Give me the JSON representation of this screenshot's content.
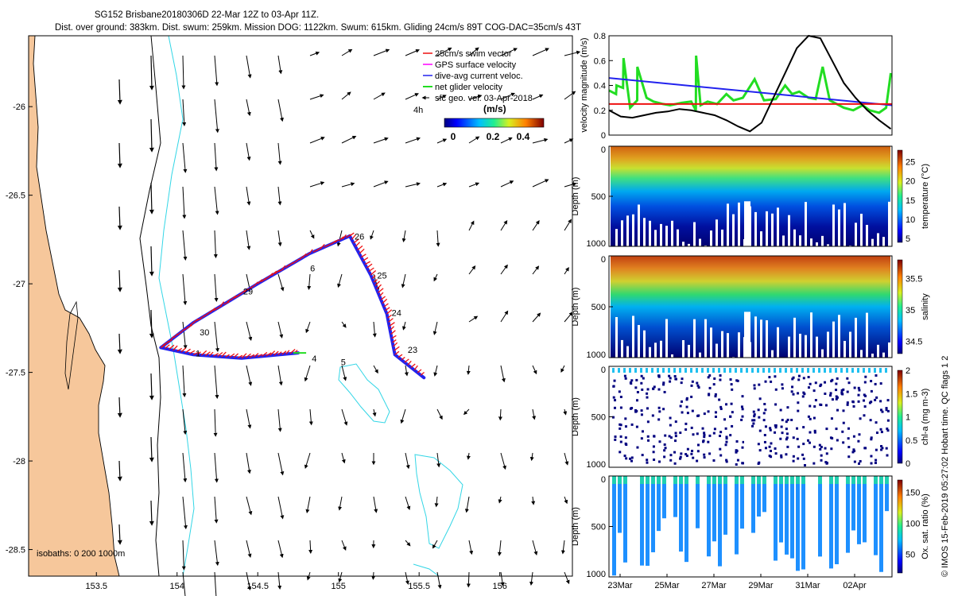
{
  "header": {
    "title_line1": "SG152 Brisbane20180306D 22-Mar 12Z to 03-Apr 11Z.",
    "title_line2": "Dist. over ground: 383km. Dist. swum: 259km. Mission DOG: 1122km. Swum: 615km. Gliding 24cm/s 89T COG-DAC=35cm/s 43T"
  },
  "colors": {
    "land": "#f6c79b",
    "isobath_cyan": "#33d6e6",
    "swim_vector": "#ee1111",
    "gps_velocity": "#ff00ff",
    "dac": "#2222ee",
    "net_glider": "#22dd22",
    "black": "#000000"
  },
  "chart_data": [
    {
      "id": "map",
      "type": "scatter",
      "title": "Glider track and surface geostrophic velocity",
      "xlabel": "",
      "ylabel": "",
      "xlim": [
        153.08,
        156.45
      ],
      "ylim": [
        -28.65,
        -25.6
      ],
      "x_ticks": [
        153.5,
        154,
        154.5,
        155,
        155.5,
        156
      ],
      "x_tick_labels": [
        "153.5",
        "154",
        "154.5",
        "155",
        "155.5",
        "156"
      ],
      "y_ticks": [
        -26,
        -26.5,
        -27,
        -27.5,
        -28,
        -28.5
      ],
      "y_tick_labels": [
        "-26",
        "-26.5",
        "-27",
        "-27.5",
        "-28",
        "-28.5"
      ],
      "legend": [
        {
          "label": "25cm/s swim vector",
          "color": "#ee1111"
        },
        {
          "label": "GPS surface velocity",
          "color": "#ff00ff"
        },
        {
          "label": "dive-avg current veloc.",
          "color": "#2222ee"
        },
        {
          "label": "net glider velocity",
          "color": "#22dd22"
        },
        {
          "label": "sfc geo. vel. 03-Apr-2018",
          "color": "#000000"
        }
      ],
      "legend_extra": "4h",
      "colorbar": {
        "label": "(m/s)",
        "ticks": [
          "0",
          "0.2",
          "0.4"
        ],
        "range": [
          0,
          0.5
        ]
      },
      "isobath_label": "isobaths: 0   200   1000m",
      "track_segment_A": [
        [
          153.9,
          -27.36
        ],
        [
          154.1,
          -27.22
        ],
        [
          154.5,
          -27.0
        ],
        [
          154.82,
          -26.83
        ],
        [
          155.07,
          -26.73
        ]
      ],
      "track_segment_B": [
        [
          155.07,
          -26.73
        ],
        [
          155.2,
          -26.95
        ],
        [
          155.3,
          -27.17
        ],
        [
          155.35,
          -27.4
        ],
        [
          155.53,
          -27.53
        ]
      ],
      "track_segment_C": [
        [
          153.9,
          -27.36
        ],
        [
          154.1,
          -27.4
        ],
        [
          154.4,
          -27.42
        ],
        [
          154.75,
          -27.39
        ]
      ],
      "day_labels": [
        {
          "text": "26",
          "lon": 155.13,
          "lat": -26.75
        },
        {
          "text": "25",
          "lon": 155.27,
          "lat": -26.97
        },
        {
          "text": "24",
          "lon": 155.36,
          "lat": -27.18
        },
        {
          "text": "23",
          "lon": 155.46,
          "lat": -27.39
        },
        {
          "text": "29",
          "lon": 154.44,
          "lat": -27.06
        },
        {
          "text": "30",
          "lon": 154.17,
          "lat": -27.29
        },
        {
          "text": "1",
          "lon": 154.13,
          "lat": -27.41
        },
        {
          "text": "4",
          "lon": 154.85,
          "lat": -27.44
        },
        {
          "text": "5",
          "lon": 155.03,
          "lat": -27.46
        },
        {
          "text": "6",
          "lon": 154.84,
          "lat": -26.93
        }
      ]
    },
    {
      "id": "velocity",
      "type": "line",
      "title": "",
      "xlabel": "",
      "ylabel": "velocity magnitude (m/s)",
      "ylim": [
        0,
        0.8
      ],
      "y_ticks": [
        "0",
        "0.2",
        "0.4",
        "0.6",
        "0.8"
      ],
      "xlim_days": [
        0,
        12.05
      ],
      "series": [
        {
          "name": "net glider velocity",
          "color": "#22dd22",
          "x": [
            0,
            0.3,
            0.32,
            0.6,
            0.62,
            0.9,
            1.2,
            1.21,
            1.6,
            1.9,
            2.3,
            2.6,
            3.1,
            3.5,
            3.7,
            3.71,
            3.9,
            4.2,
            4.6,
            5.0,
            5.3,
            5.7,
            6.2,
            6.6,
            7.1,
            7.5,
            7.8,
            8.1,
            8.5,
            8.8,
            9.1,
            9.4,
            9.7,
            10.0,
            10.4,
            10.8,
            11.1,
            11.5,
            11.8,
            12.0
          ],
          "values": [
            0.36,
            0.33,
            0.4,
            0.38,
            0.62,
            0.22,
            0.28,
            0.55,
            0.3,
            0.27,
            0.25,
            0.24,
            0.26,
            0.27,
            0.2,
            0.64,
            0.24,
            0.27,
            0.25,
            0.33,
            0.28,
            0.3,
            0.45,
            0.28,
            0.29,
            0.4,
            0.33,
            0.35,
            0.3,
            0.29,
            0.55,
            0.28,
            0.25,
            0.22,
            0.2,
            0.24,
            0.2,
            0.18,
            0.22,
            0.5
          ]
        },
        {
          "name": "dive-avg current veloc.",
          "color": "#2222ee",
          "x": [
            0,
            12.05
          ],
          "values": [
            0.46,
            0.24
          ]
        },
        {
          "name": "swim speed",
          "color": "#ee1111",
          "x": [
            0,
            12.05
          ],
          "values": [
            0.25,
            0.25
          ]
        },
        {
          "name": "sfc geo. vel.",
          "color": "#000000",
          "x": [
            0,
            0.5,
            1.0,
            1.5,
            2.0,
            2.5,
            3.0,
            3.5,
            4.0,
            4.5,
            5.0,
            5.5,
            6.0,
            6.5,
            7.0,
            7.5,
            8.0,
            8.5,
            9.0,
            9.5,
            10.0,
            10.5,
            11.0,
            11.5,
            12.0
          ],
          "values": [
            0.2,
            0.15,
            0.14,
            0.16,
            0.18,
            0.19,
            0.21,
            0.2,
            0.18,
            0.16,
            0.12,
            0.07,
            0.03,
            0.1,
            0.3,
            0.5,
            0.7,
            0.82,
            0.78,
            0.6,
            0.42,
            0.3,
            0.2,
            0.12,
            0.05
          ]
        }
      ]
    },
    {
      "id": "temperature",
      "type": "heatmap",
      "ylabel": "Depth (m)",
      "ylim": [
        1000,
        0
      ],
      "y_ticks": [
        "0",
        "500",
        "1000"
      ],
      "colorbar_label": "temperature (°C)",
      "colorbar_ticks": [
        "5",
        "10",
        "15",
        "20",
        "25"
      ],
      "color_range": [
        4,
        28
      ]
    },
    {
      "id": "salinity",
      "type": "heatmap",
      "ylabel": "Depth (m)",
      "ylim": [
        1000,
        0
      ],
      "y_ticks": [
        "0",
        "500",
        "1000"
      ],
      "colorbar_label": "salinity",
      "colorbar_ticks": [
        "34.5",
        "35",
        "35.5"
      ],
      "color_range": [
        34.3,
        35.8
      ]
    },
    {
      "id": "chlorophyll",
      "type": "heatmap",
      "ylabel": "Depth (m)",
      "ylim": [
        1000,
        0
      ],
      "y_ticks": [
        "0",
        "500",
        "1000"
      ],
      "colorbar_label": "chl-a (mg m-3)",
      "colorbar_ticks": [
        "0",
        "0.5",
        "1",
        "1.5",
        "2"
      ],
      "color_range": [
        0,
        2
      ]
    },
    {
      "id": "oxygen",
      "type": "heatmap",
      "ylabel": "Depth (m)",
      "ylim": [
        1000,
        0
      ],
      "y_ticks": [
        "0",
        "500",
        "1000"
      ],
      "colorbar_label": "Ox. sat. ratio (%)",
      "colorbar_ticks": [
        "50",
        "100",
        "150"
      ],
      "color_range": [
        20,
        170
      ],
      "x_tick_labels": [
        "23Mar",
        "25Mar",
        "27Mar",
        "29Mar",
        "31Mar",
        "02Apr"
      ]
    }
  ],
  "footer_credit": "© IMOS 15-Feb-2019 05:27:02 Hobart time. QC flags 1  2"
}
